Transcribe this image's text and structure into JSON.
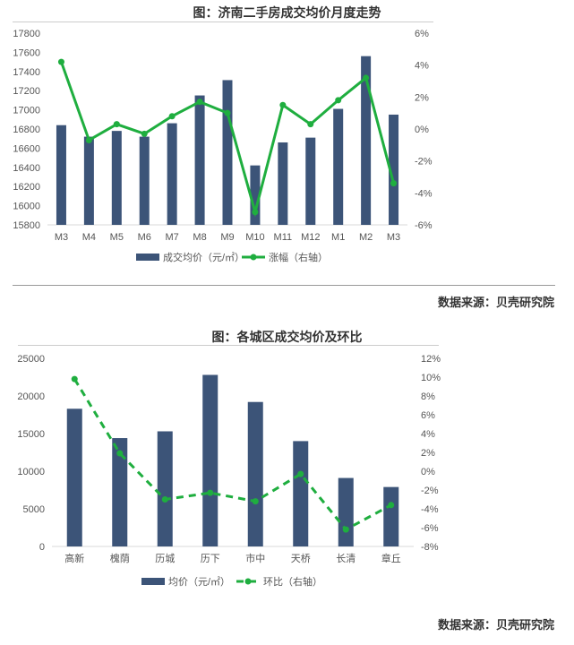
{
  "chart_data": [
    {
      "type": "bar+line",
      "title": "图：济南二手房成交均价月度走势",
      "categories": [
        "M3",
        "M4",
        "M5",
        "M6",
        "M7",
        "M8",
        "M9",
        "M10",
        "M11",
        "M12",
        "M1",
        "M2",
        "M3"
      ],
      "series": [
        {
          "name": "成交均价（元/㎡）",
          "axis": "left",
          "type": "bar",
          "color": "#3c5478",
          "values": [
            16840,
            16720,
            16780,
            16720,
            16860,
            17150,
            17310,
            16420,
            16660,
            16710,
            17010,
            17560,
            16950
          ]
        },
        {
          "name": "涨幅（右轴）",
          "axis": "right",
          "type": "line",
          "color": "#1fae3f",
          "values": [
            4.2,
            -0.7,
            0.3,
            -0.3,
            0.8,
            1.7,
            1.0,
            -5.2,
            1.5,
            0.3,
            1.8,
            3.2,
            -3.4
          ]
        }
      ],
      "ylim": [
        15800,
        17800
      ],
      "yticks": [
        15800,
        16000,
        16200,
        16400,
        16600,
        16800,
        17000,
        17200,
        17400,
        17600,
        17800
      ],
      "y2lim": [
        -6,
        6
      ],
      "y2ticks": [
        -6,
        -4,
        -2,
        0,
        2,
        4,
        6
      ],
      "y2_suffix": "%",
      "legend": "bottom",
      "source": "数据来源：贝壳研究院"
    },
    {
      "type": "bar+line",
      "title": "图：各城区成交均价及环比",
      "categories": [
        "高新",
        "槐荫",
        "历城",
        "历下",
        "市中",
        "天桥",
        "长清",
        "章丘"
      ],
      "series": [
        {
          "name": "均价（元/㎡）",
          "axis": "left",
          "type": "bar",
          "color": "#3c5478",
          "values": [
            18300,
            14400,
            15300,
            22800,
            19200,
            14000,
            9100,
            7900
          ]
        },
        {
          "name": "环比（右轴）",
          "axis": "right",
          "type": "line-dashed",
          "color": "#1fae3f",
          "values": [
            9.8,
            1.9,
            -3.0,
            -2.3,
            -3.2,
            -0.3,
            -6.2,
            -3.6
          ]
        }
      ],
      "ylim": [
        0,
        25000
      ],
      "yticks": [
        0,
        5000,
        10000,
        15000,
        20000,
        25000
      ],
      "y2lim": [
        -8,
        12
      ],
      "y2ticks": [
        -8,
        -6,
        -4,
        -2,
        0,
        2,
        4,
        6,
        8,
        10,
        12
      ],
      "y2_suffix": "%",
      "legend": "bottom",
      "source": "数据来源：贝壳研究院"
    }
  ]
}
